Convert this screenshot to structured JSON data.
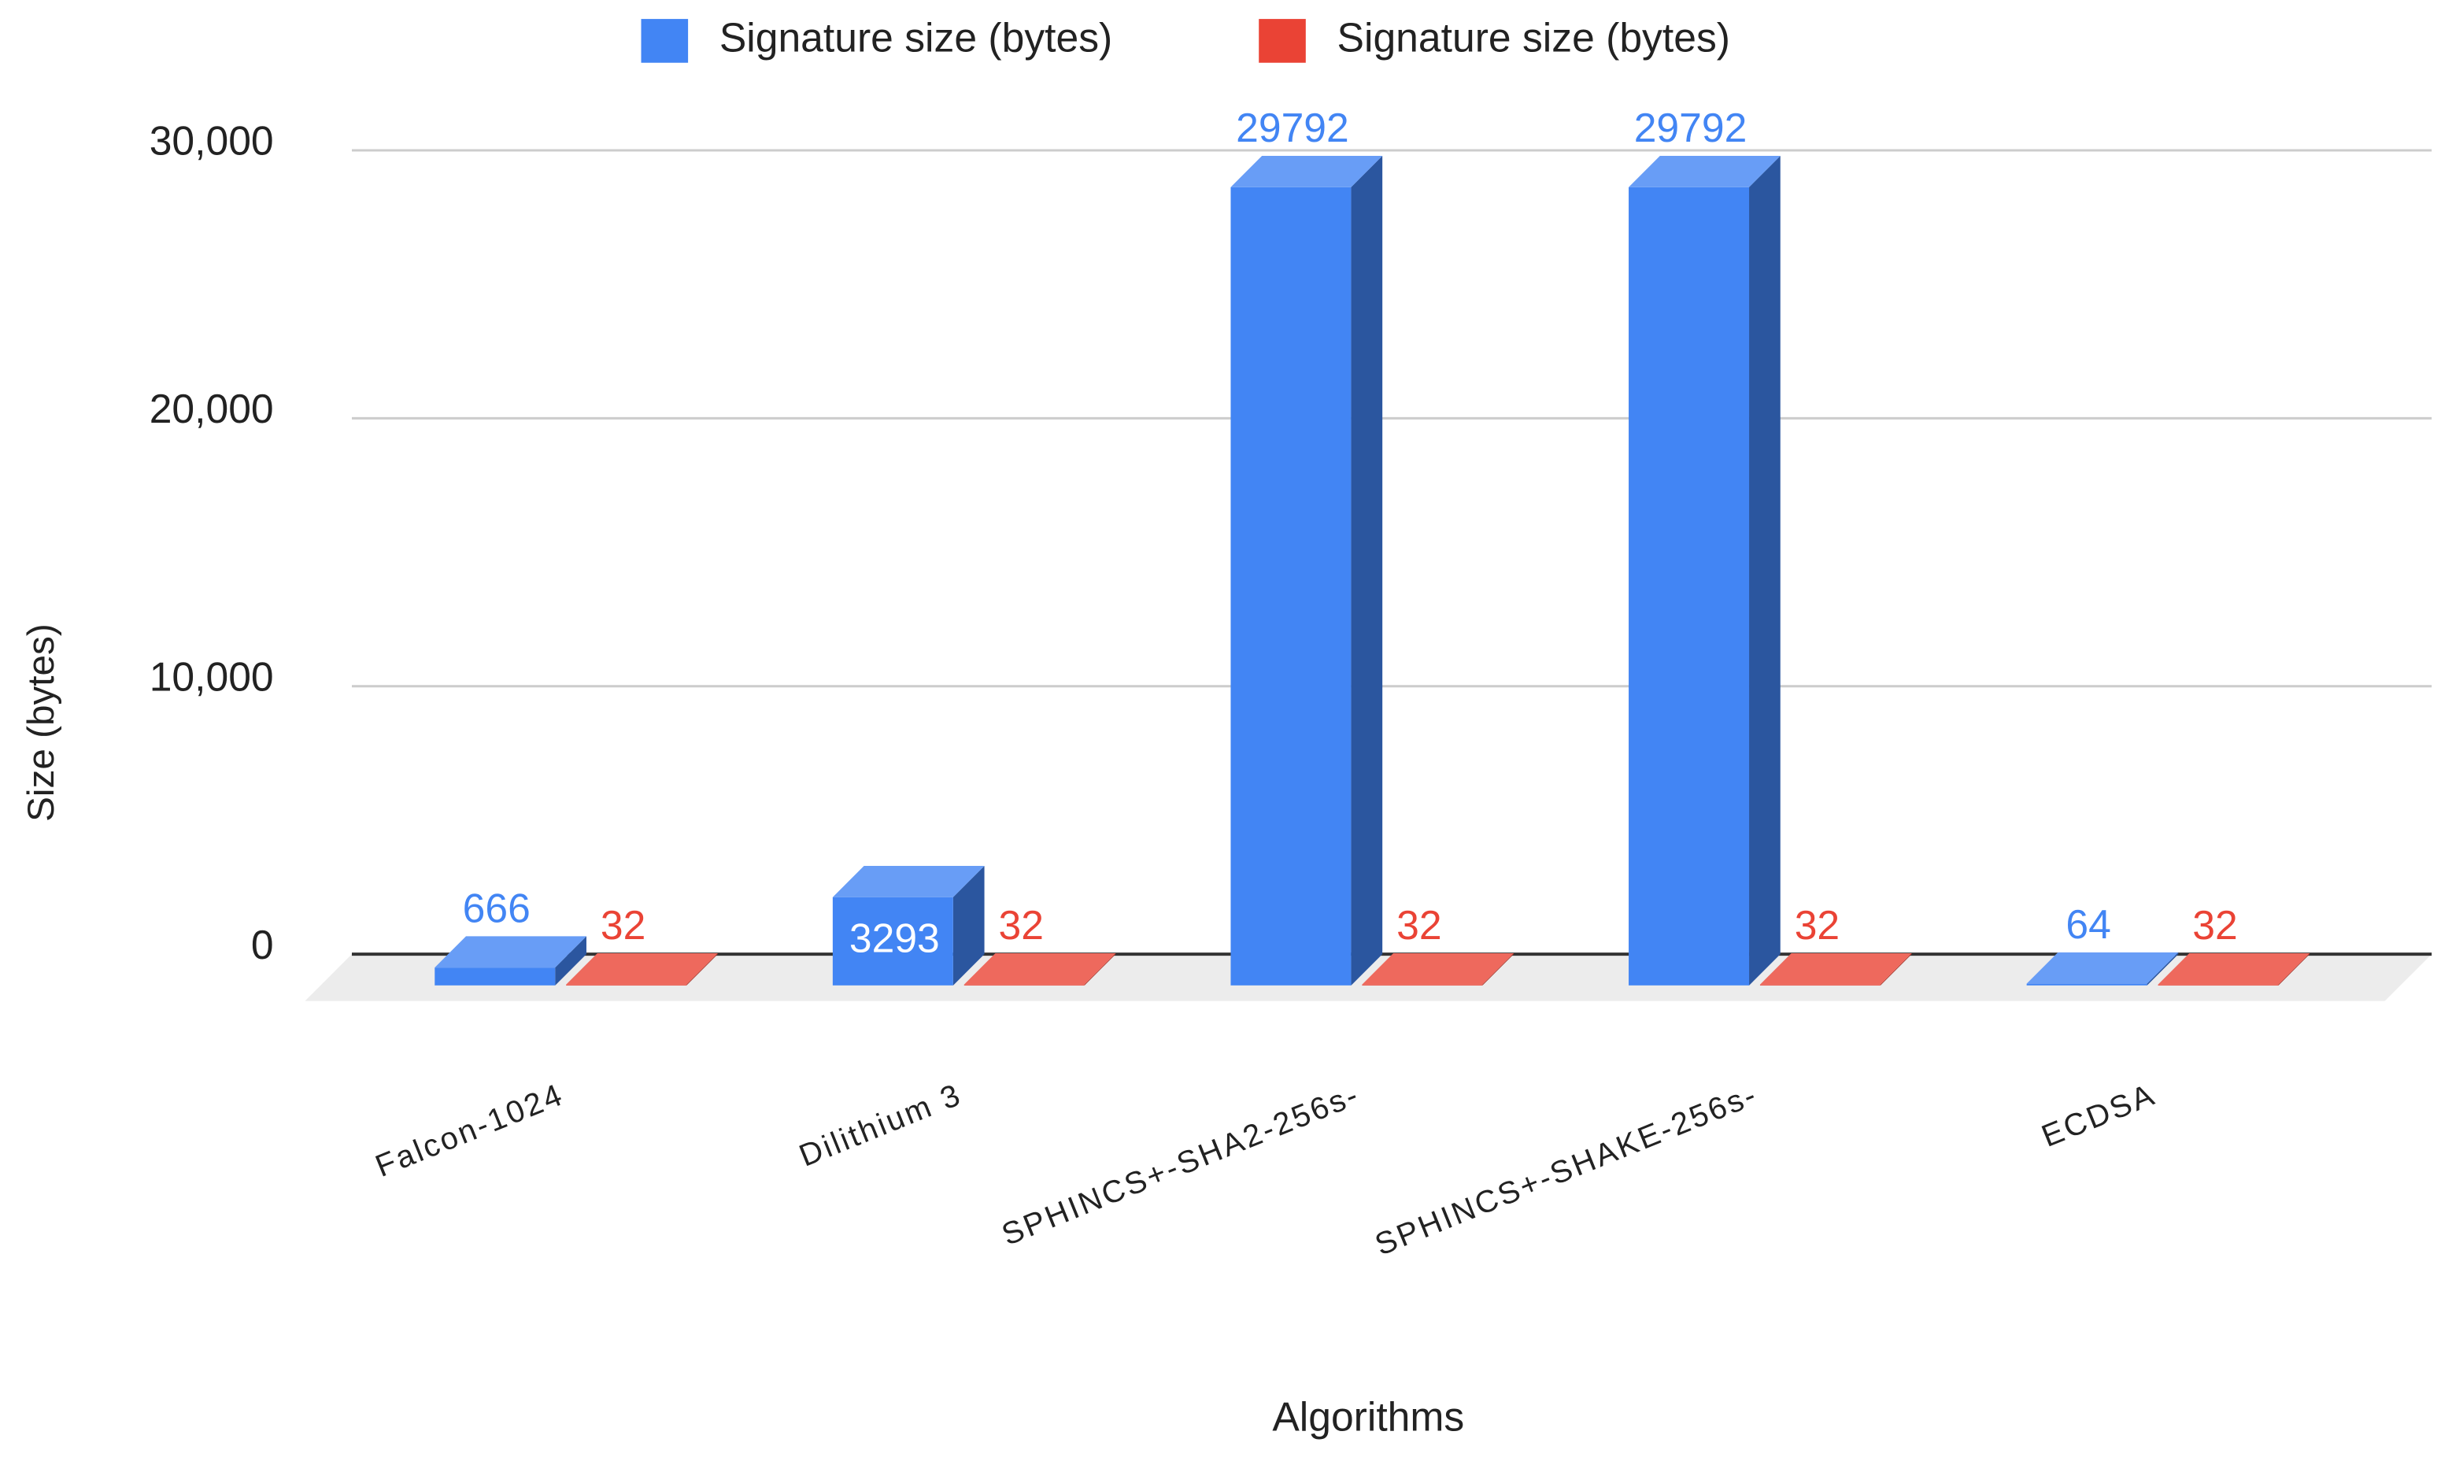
{
  "chart_data": {
    "type": "bar3d",
    "x_label": "Algorithms",
    "y_label": "Size (bytes)",
    "categories": [
      "Falcon-1024",
      "Dilithium 3",
      "SPHINCS+-SHA2-256s-",
      "SPHINCS+-SHAKE-256s-",
      "ECDSA"
    ],
    "series": [
      {
        "name": "Signature size (bytes)",
        "color": "#4285f4",
        "values": [
          666,
          3293,
          29792,
          29792,
          64
        ]
      },
      {
        "name": "Signature size (bytes)",
        "color": "#ea4335",
        "values": [
          32,
          32,
          32,
          32,
          32
        ]
      }
    ],
    "ylim": [
      0,
      30000
    ],
    "yticks": [
      0,
      {
        "value": 10000,
        "label": "10,000"
      },
      {
        "value": 20000,
        "label": "20,000"
      },
      {
        "value": 30000,
        "label": "30,000"
      }
    ],
    "grid": true
  }
}
